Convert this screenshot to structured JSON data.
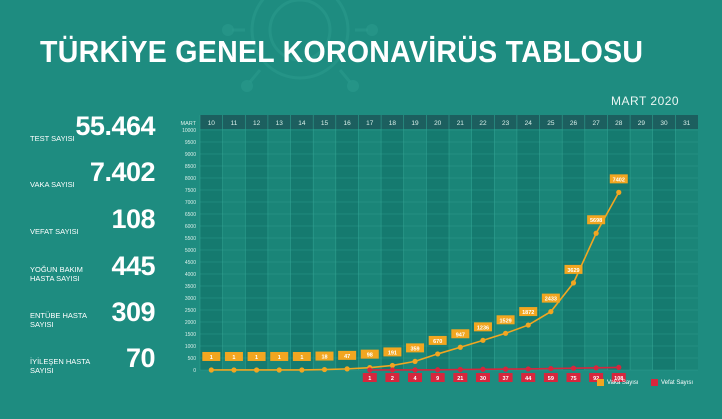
{
  "title": "TÜRKİYE GENEL KORONAVİRÜS TABLOSU",
  "month_label": "MART 2020",
  "stats": [
    {
      "label": "TEST SAYISI",
      "value": "55.464"
    },
    {
      "label": "VAKA SAYISI",
      "value": "7.402"
    },
    {
      "label": "VEFAT SAYISI",
      "value": "108"
    },
    {
      "label": "YOĞUN BAKIM HASTA SAYISI",
      "value": "445"
    },
    {
      "label": "ENTÜBE HASTA SAYISI",
      "value": "309"
    },
    {
      "label": "İYİLEŞEN HASTA SAYISI",
      "value": "70"
    }
  ],
  "colors": {
    "background": "#1e8c80",
    "case": "#f2a620",
    "death": "#d7263d",
    "header": "#1c5f5f"
  },
  "chart_data": {
    "type": "line",
    "x_axis_title": "MART",
    "x": [
      "10",
      "11",
      "12",
      "13",
      "14",
      "15",
      "16",
      "17",
      "18",
      "19",
      "20",
      "21",
      "22",
      "23",
      "24",
      "25",
      "26",
      "27",
      "28",
      "29",
      "30",
      "31"
    ],
    "ylim": [
      0,
      10000
    ],
    "y_ticks": [
      0,
      500,
      1000,
      1500,
      2000,
      2500,
      3000,
      3500,
      4000,
      4500,
      5000,
      5500,
      6000,
      6500,
      7000,
      7500,
      8000,
      8500,
      9000,
      9500,
      10000
    ],
    "series": [
      {
        "name": "Vaka Sayısı",
        "values": [
          1,
          1,
          1,
          1,
          1,
          18,
          47,
          98,
          191,
          359,
          670,
          947,
          1236,
          1529,
          1872,
          2433,
          3629,
          5698,
          7402,
          null,
          null,
          null
        ]
      },
      {
        "name": "Vefat Sayısı",
        "values": [
          null,
          null,
          null,
          null,
          null,
          null,
          null,
          1,
          2,
          4,
          9,
          21,
          30,
          37,
          44,
          59,
          75,
          92,
          108,
          null,
          null,
          null
        ]
      }
    ],
    "legend_position": "bottom-right"
  }
}
